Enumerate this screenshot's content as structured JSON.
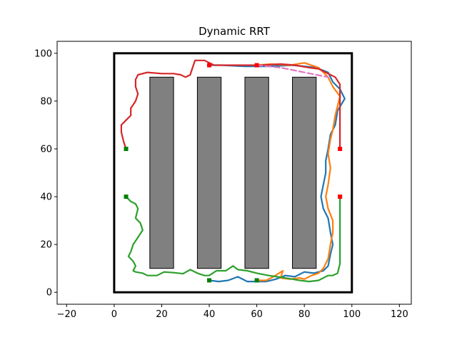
{
  "chart_data": {
    "type": "line",
    "title": "Dynamic RRT",
    "xlabel": "",
    "ylabel": "",
    "xlim": [
      -24,
      125
    ],
    "ylim": [
      -5,
      105
    ],
    "xticks": [
      -20,
      0,
      20,
      40,
      60,
      80,
      100,
      120
    ],
    "yticks": [
      0,
      20,
      40,
      60,
      80,
      100
    ],
    "grid": false,
    "legend": "none",
    "boundary": {
      "x": [
        0,
        100
      ],
      "y": [
        0,
        100
      ],
      "color": "#000000"
    },
    "obstacles": [
      {
        "x": [
          15,
          25
        ],
        "y": [
          10,
          90
        ]
      },
      {
        "x": [
          35,
          45
        ],
        "y": [
          10,
          90
        ]
      },
      {
        "x": [
          55,
          65
        ],
        "y": [
          10,
          90
        ]
      },
      {
        "x": [
          75,
          85
        ],
        "y": [
          10,
          90
        ]
      }
    ],
    "obstacle_color": "#808080",
    "series": [
      {
        "color": "#1f77b4",
        "points": [
          [
            40,
            5
          ],
          [
            44,
            4.5
          ],
          [
            48,
            5
          ],
          [
            52,
            6.5
          ],
          [
            56,
            4.5
          ],
          [
            60,
            4.5
          ],
          [
            64,
            4.5
          ],
          [
            68,
            5.5
          ],
          [
            72,
            7
          ],
          [
            76,
            6.5
          ],
          [
            80,
            8.5
          ],
          [
            84,
            8
          ],
          [
            88,
            9
          ],
          [
            90,
            11
          ],
          [
            91,
            16
          ],
          [
            92,
            20
          ],
          [
            91,
            25
          ],
          [
            90,
            31
          ],
          [
            88,
            35
          ],
          [
            87,
            40
          ],
          [
            88,
            45
          ],
          [
            89,
            50
          ],
          [
            89,
            55
          ],
          [
            90,
            60
          ],
          [
            91,
            66
          ],
          [
            93,
            70
          ],
          [
            94,
            76
          ],
          [
            97,
            81
          ],
          [
            95,
            85
          ],
          [
            92,
            88
          ],
          [
            90,
            92
          ],
          [
            85,
            94
          ],
          [
            75,
            95
          ],
          [
            65,
            94.5
          ],
          [
            55,
            94.5
          ],
          [
            45,
            95
          ],
          [
            40,
            95
          ]
        ]
      },
      {
        "color": "#ff7f0e",
        "points": [
          [
            60,
            5
          ],
          [
            64,
            5
          ],
          [
            67,
            6.5
          ],
          [
            71,
            9
          ],
          [
            70,
            6
          ],
          [
            74,
            5.5
          ],
          [
            78,
            6
          ],
          [
            80,
            5.5
          ],
          [
            83,
            7
          ],
          [
            86,
            8
          ],
          [
            88,
            10
          ],
          [
            90,
            14
          ],
          [
            91,
            20
          ],
          [
            92,
            25
          ],
          [
            92,
            30
          ],
          [
            90,
            35
          ],
          [
            89,
            40
          ],
          [
            90,
            45
          ],
          [
            91,
            52
          ],
          [
            90,
            58
          ],
          [
            91,
            64
          ],
          [
            92,
            68
          ],
          [
            93,
            74
          ],
          [
            95,
            82
          ],
          [
            92,
            86
          ],
          [
            90,
            90
          ],
          [
            86,
            94
          ],
          [
            80,
            96
          ],
          [
            74,
            95
          ],
          [
            66,
            95.5
          ],
          [
            60,
            95
          ]
        ]
      },
      {
        "color": "#d62728",
        "points": [
          [
            5,
            60
          ],
          [
            4,
            63
          ],
          [
            3,
            67
          ],
          [
            3,
            70
          ],
          [
            5,
            72
          ],
          [
            7,
            74
          ],
          [
            7,
            77
          ],
          [
            9,
            80
          ],
          [
            10,
            83
          ],
          [
            9,
            86
          ],
          [
            9,
            89
          ],
          [
            10,
            91
          ],
          [
            14,
            92
          ],
          [
            20,
            91.5
          ],
          [
            25,
            91.5
          ],
          [
            28,
            91
          ],
          [
            30,
            90
          ],
          [
            32,
            91
          ],
          [
            33,
            94
          ],
          [
            34,
            97
          ],
          [
            38,
            97
          ],
          [
            42,
            95
          ],
          [
            48,
            95
          ],
          [
            55,
            95
          ],
          [
            62,
            95
          ],
          [
            70,
            95.5
          ],
          [
            76,
            95
          ],
          [
            82,
            94
          ],
          [
            86,
            93.5
          ],
          [
            89,
            92
          ],
          [
            93,
            90
          ],
          [
            95,
            87
          ],
          [
            95,
            80
          ],
          [
            95,
            72
          ],
          [
            95,
            60
          ]
        ]
      },
      {
        "color": "#2ca02c",
        "points": [
          [
            5,
            40
          ],
          [
            7,
            38
          ],
          [
            9,
            37
          ],
          [
            10,
            35
          ],
          [
            9,
            31
          ],
          [
            11,
            29
          ],
          [
            12,
            26
          ],
          [
            10,
            23
          ],
          [
            8,
            20
          ],
          [
            7,
            17
          ],
          [
            6,
            15
          ],
          [
            8,
            13
          ],
          [
            9,
            11
          ],
          [
            8,
            9
          ],
          [
            9,
            8.5
          ],
          [
            12,
            8
          ],
          [
            14,
            7
          ],
          [
            18,
            7
          ],
          [
            21,
            8.5
          ],
          [
            25,
            8.2
          ],
          [
            29,
            7.8
          ],
          [
            32,
            9.5
          ],
          [
            35,
            8
          ],
          [
            38,
            7
          ],
          [
            40,
            7
          ],
          [
            43,
            9
          ],
          [
            47,
            9
          ],
          [
            50,
            11
          ],
          [
            52,
            9.5
          ],
          [
            56,
            9
          ],
          [
            60,
            8
          ],
          [
            65,
            7
          ],
          [
            72,
            6
          ],
          [
            78,
            5
          ],
          [
            82,
            4.5
          ],
          [
            86,
            5
          ],
          [
            88,
            6
          ],
          [
            90,
            7
          ],
          [
            92,
            7
          ],
          [
            94,
            8
          ],
          [
            95,
            12
          ],
          [
            95,
            14
          ],
          [
            95,
            22
          ],
          [
            95,
            30
          ],
          [
            95,
            37
          ],
          [
            95,
            40
          ]
        ]
      },
      {
        "color": "#e377c2",
        "dashed": true,
        "points": [
          [
            60,
            95
          ],
          [
            70,
            94
          ],
          [
            80,
            92
          ],
          [
            90,
            90
          ]
        ]
      }
    ],
    "start_markers": {
      "color": "#008000",
      "points": [
        [
          5,
          60
        ],
        [
          5,
          40
        ],
        [
          40,
          5
        ],
        [
          60,
          5
        ]
      ]
    },
    "goal_markers": {
      "color": "#ff0000",
      "points": [
        [
          40,
          95
        ],
        [
          60,
          95
        ],
        [
          95,
          60
        ],
        [
          95,
          40
        ]
      ]
    }
  }
}
